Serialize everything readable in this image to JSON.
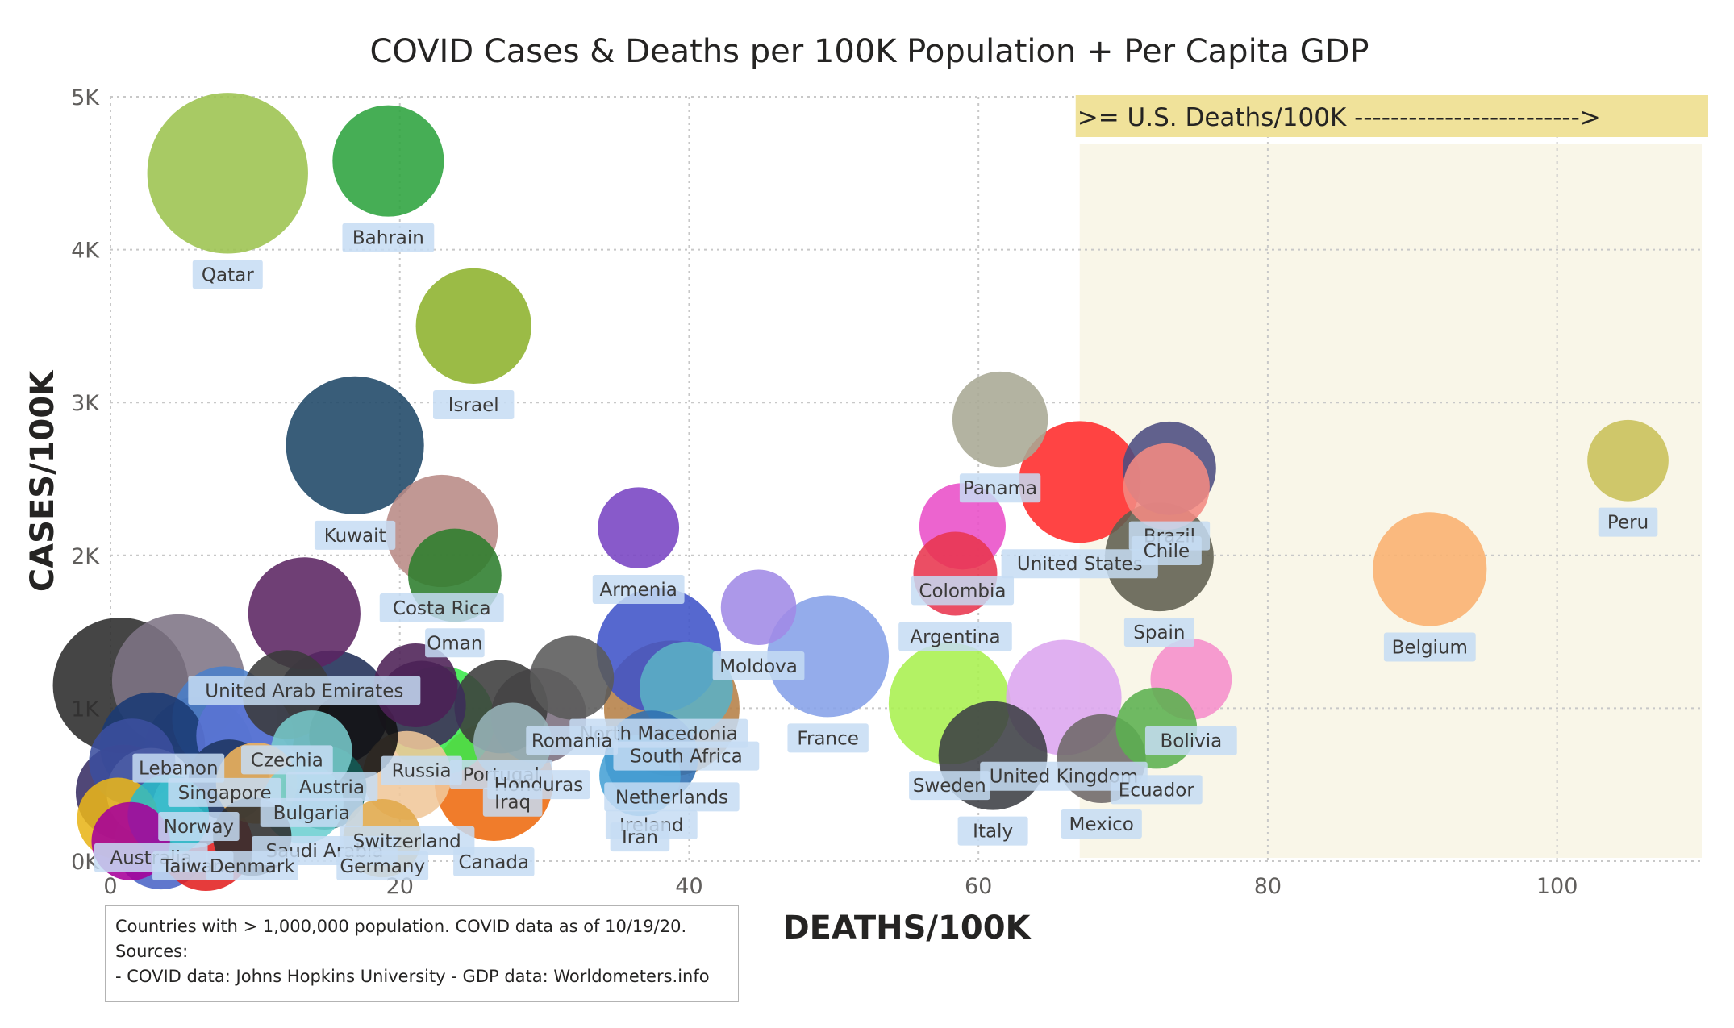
{
  "chart_data": {
    "type": "scatter",
    "title": "COVID Cases & Deaths per 100K Population + Per Capita GDP",
    "xlabel": "DEATHS/100K",
    "ylabel": "CASES/100K",
    "xlim": [
      0,
      110
    ],
    "ylim": [
      0,
      5000
    ],
    "x_ticks": [
      0,
      20,
      40,
      60,
      80,
      100
    ],
    "x_tick_labels": [
      "0",
      "20",
      "40",
      "60",
      "80",
      "100"
    ],
    "y_ticks": [
      0,
      1000,
      2000,
      3000,
      4000,
      5000
    ],
    "y_tick_labels": [
      "0K",
      "1K",
      "2K",
      "3K",
      "4K",
      "5K"
    ],
    "grid": true,
    "size_encoding": "Per Capita GDP",
    "reference_band": {
      "x_from": 67,
      "x_to": 110,
      "label": ">= U.S. Deaths/100K ------------------------->",
      "color": "#f9f6e8"
    },
    "banner_color": "#f0e29a",
    "points": [
      {
        "name": "Qatar",
        "x": 8.1,
        "y": 4500,
        "gdp": 62000,
        "color": "#9cc34f",
        "labeled": true
      },
      {
        "name": "Bahrain",
        "x": 19.2,
        "y": 4580,
        "gdp": 23500,
        "color": "#2ca33e",
        "labeled": true
      },
      {
        "name": "Israel",
        "x": 25.1,
        "y": 3500,
        "gdp": 26000,
        "color": "#8db22c",
        "labeled": true
      },
      {
        "name": "Kuwait",
        "x": 16.9,
        "y": 2720,
        "gdp": 42000,
        "color": "#1e4766",
        "labeled": true
      },
      {
        "name": "Costa Rica",
        "x": 22.9,
        "y": 2160,
        "gdp": 24000,
        "color": "#b88a85",
        "labeled": true
      },
      {
        "name": "Oman",
        "x": 23.8,
        "y": 1870,
        "gdp": 14000,
        "color": "#2c7d2c",
        "labeled": true
      },
      {
        "name": "Armenia",
        "x": 36.5,
        "y": 2180,
        "gdp": 9000,
        "color": "#7743c3",
        "labeled": true
      },
      {
        "name": "Moldova",
        "x": 44.8,
        "y": 1660,
        "gdp": 7000,
        "color": "#a18ae6",
        "labeled": true
      },
      {
        "name": "United Arab Emirates",
        "x": 13.4,
        "y": 1620,
        "gdp": 24000,
        "color": "#5b2462",
        "labeled": true
      },
      {
        "name": "North Macedonia",
        "x": 37.9,
        "y": 1380,
        "gdp": 32000,
        "color": "#3f53c8",
        "labeled": true
      },
      {
        "name": "France",
        "x": 49.6,
        "y": 1340,
        "gdp": 30000,
        "color": "#85a1e8",
        "labeled": true
      },
      {
        "name": "Romania",
        "x": 31.9,
        "y": 1200,
        "gdp": 10000,
        "color": "#5a5a5a",
        "labeled": true
      },
      {
        "name": "South Africa",
        "x": 39.8,
        "y": 1130,
        "gdp": 14000,
        "color": "#5bb0c5",
        "labeled": true
      },
      {
        "name": "Netherlands",
        "x": 38.8,
        "y": 1000,
        "gdp": 40000,
        "color": "#b57f47",
        "labeled": true
      },
      {
        "name": "Lebanon",
        "x": 4.7,
        "y": 1180,
        "gdp": 38000,
        "color": "#7e7485",
        "labeled": true
      },
      {
        "name": "Czechia",
        "x": 12.2,
        "y": 1090,
        "gdp": 12000,
        "color": "#3b3b3b",
        "labeled": true
      },
      {
        "name": "Austria",
        "x": 15.3,
        "y": 1000,
        "gdp": 26000,
        "color": "#1f2d57",
        "labeled": true
      },
      {
        "name": "Russia",
        "x": 21.5,
        "y": 1020,
        "gdp": 12000,
        "color": "#3c2c59",
        "labeled": true
      },
      {
        "name": "Portugal",
        "x": 27.0,
        "y": 1010,
        "gdp": 14000,
        "color": "#3c3c3c",
        "labeled": true
      },
      {
        "name": "Honduras",
        "x": 29.6,
        "y": 950,
        "gdp": 15000,
        "color": "#7b6e7e",
        "labeled": true
      },
      {
        "name": "Singapore",
        "x": 7.9,
        "y": 930,
        "gdp": 20000,
        "color": "#4b80ca",
        "labeled": true
      },
      {
        "name": "Iraq",
        "x": 27.8,
        "y": 780,
        "gdp": 8000,
        "color": "#97b3b8",
        "labeled": true
      },
      {
        "name": "Norway",
        "x": 6.1,
        "y": 720,
        "gdp": 22000,
        "color": "#43446b",
        "labeled": true
      },
      {
        "name": "Bulgaria",
        "x": 13.9,
        "y": 720,
        "gdp": 9000,
        "color": "#78cacb",
        "labeled": true
      },
      {
        "name": "Saudi Arabia",
        "x": 14.8,
        "y": 480,
        "gdp": 10000,
        "color": "#135b55",
        "labeled": true
      },
      {
        "name": "Australia",
        "x": 2.8,
        "y": 450,
        "gdp": 12000,
        "color": "#c2c2d6",
        "labeled": true
      },
      {
        "name": "Taiwan",
        "x": 5.7,
        "y": 350,
        "gdp": 9000,
        "color": "#a9cfe8",
        "labeled": true
      },
      {
        "name": "Switzerland",
        "x": 20.5,
        "y": 560,
        "gdp": 12000,
        "color": "#f0c79a",
        "labeled": true
      },
      {
        "name": "Canada",
        "x": 26.5,
        "y": 520,
        "gdp": 28000,
        "color": "#ee6a0e",
        "labeled": true
      },
      {
        "name": "Denmark",
        "x": 9.8,
        "y": 160,
        "gdp": 8000,
        "color": "#2d2d2d",
        "labeled": true
      },
      {
        "name": "Germany",
        "x": 18.8,
        "y": 150,
        "gdp": 8000,
        "color": "#e0a84a",
        "labeled": true
      },
      {
        "name": "Ireland",
        "x": 37.4,
        "y": 680,
        "gdp": 14000,
        "color": "#2f6fb3",
        "labeled": true
      },
      {
        "name": "Iran",
        "x": 36.6,
        "y": 560,
        "gdp": 9000,
        "color": "#46a0d5",
        "labeled": true
      },
      {
        "name": "Panama",
        "x": 61.5,
        "y": 2890,
        "gdp": 15000,
        "color": "#a8a894",
        "labeled": true
      },
      {
        "name": "United States",
        "x": 67.0,
        "y": 2480,
        "gdp": 30000,
        "color": "#ff2a2a",
        "labeled": true
      },
      {
        "name": "Brazil",
        "x": 73.2,
        "y": 2570,
        "gdp": 14000,
        "color": "#4b4c7f",
        "labeled": true
      },
      {
        "name": "Chile",
        "x": 73.0,
        "y": 2450,
        "gdp": 11000,
        "color": "#f28a82",
        "labeled": true
      },
      {
        "name": "Spain",
        "x": 72.5,
        "y": 1990,
        "gdp": 22000,
        "color": "#5e5e4e",
        "labeled": true
      },
      {
        "name": "Colombia",
        "x": 58.9,
        "y": 2190,
        "gdp": 11000,
        "color": "#e94ec8",
        "labeled": true
      },
      {
        "name": "Argentina",
        "x": 58.4,
        "y": 1880,
        "gdp": 10000,
        "color": "#e8364e",
        "labeled": true
      },
      {
        "name": "Peru",
        "x": 104.9,
        "y": 2620,
        "gdp": 9000,
        "color": "#c8c058",
        "labeled": true
      },
      {
        "name": "Belgium",
        "x": 91.2,
        "y": 1910,
        "gdp": 25000,
        "color": "#f9b16e",
        "labeled": true
      },
      {
        "name": "United Kingdom",
        "x": 65.9,
        "y": 1070,
        "gdp": 26000,
        "color": "#dca5ef",
        "labeled": true
      },
      {
        "name": "Sweden",
        "x": 58.0,
        "y": 1030,
        "gdp": 30000,
        "color": "#a9f04f",
        "labeled": true
      },
      {
        "name": "Italy",
        "x": 61.0,
        "y": 690,
        "gdp": 22000,
        "color": "#3c3f44",
        "labeled": true
      },
      {
        "name": "Bolivia",
        "x": 74.7,
        "y": 1190,
        "gdp": 9000,
        "color": "#f58ecb",
        "labeled": true
      },
      {
        "name": "Ecuador",
        "x": 72.3,
        "y": 870,
        "gdp": 9000,
        "color": "#5bb04e",
        "labeled": true
      },
      {
        "name": "Mexico",
        "x": 68.5,
        "y": 670,
        "gdp": 12000,
        "color": "#6d6868",
        "labeled": true
      },
      {
        "name": "",
        "x": 0.7,
        "y": 1150,
        "gdp": 40000,
        "color": "#2b2b2b",
        "labeled": false
      },
      {
        "name": "",
        "x": 22.8,
        "y": 920,
        "gdp": 22000,
        "color": "#39e84a",
        "labeled": false
      },
      {
        "name": "",
        "x": 2.9,
        "y": 760,
        "gdp": 20000,
        "color": "#1a3a74",
        "labeled": false
      },
      {
        "name": "",
        "x": 9.3,
        "y": 820,
        "gdp": 16000,
        "color": "#5a73d4",
        "labeled": false
      },
      {
        "name": "",
        "x": 16.8,
        "y": 820,
        "gdp": 12000,
        "color": "#111111",
        "labeled": false
      },
      {
        "name": "",
        "x": 21.1,
        "y": 1150,
        "gdp": 10000,
        "color": "#4c2055",
        "labeled": false
      },
      {
        "name": "",
        "x": 0.9,
        "y": 450,
        "gdp": 15000,
        "color": "#382e64",
        "labeled": false
      },
      {
        "name": "",
        "x": 8.2,
        "y": 530,
        "gdp": 9000,
        "color": "#1e3561",
        "labeled": false
      },
      {
        "name": "",
        "x": 10.1,
        "y": 510,
        "gdp": 9000,
        "color": "#f3b55b",
        "labeled": false
      },
      {
        "name": "",
        "x": 3.5,
        "y": 120,
        "gdp": 14000,
        "color": "#4a64c6",
        "labeled": false
      },
      {
        "name": "",
        "x": 6.6,
        "y": 110,
        "gdp": 14000,
        "color": "#e22020",
        "labeled": false
      },
      {
        "name": "",
        "x": 1.4,
        "y": 130,
        "gdp": 8000,
        "color": "#a6009a",
        "labeled": false
      },
      {
        "name": "",
        "x": 0.5,
        "y": 280,
        "gdp": 9000,
        "color": "#e8b51a",
        "labeled": false
      },
      {
        "name": "",
        "x": 13.3,
        "y": 380,
        "gdp": 9000,
        "color": "#6dcfd1",
        "labeled": false
      },
      {
        "name": "",
        "x": 4.0,
        "y": 300,
        "gdp": 9000,
        "color": "#2bb9c7",
        "labeled": false
      },
      {
        "name": "",
        "x": 1.5,
        "y": 650,
        "gdp": 11000,
        "color": "#3b4f9e",
        "labeled": false
      }
    ]
  },
  "annotation": {
    "lines": [
      "Countries with > 1,000,000 population.  COVID data as of 10/19/20.",
      "Sources:",
      "- COVID data: Johns Hopkins University  - GDP data: Worldometers.info"
    ]
  }
}
